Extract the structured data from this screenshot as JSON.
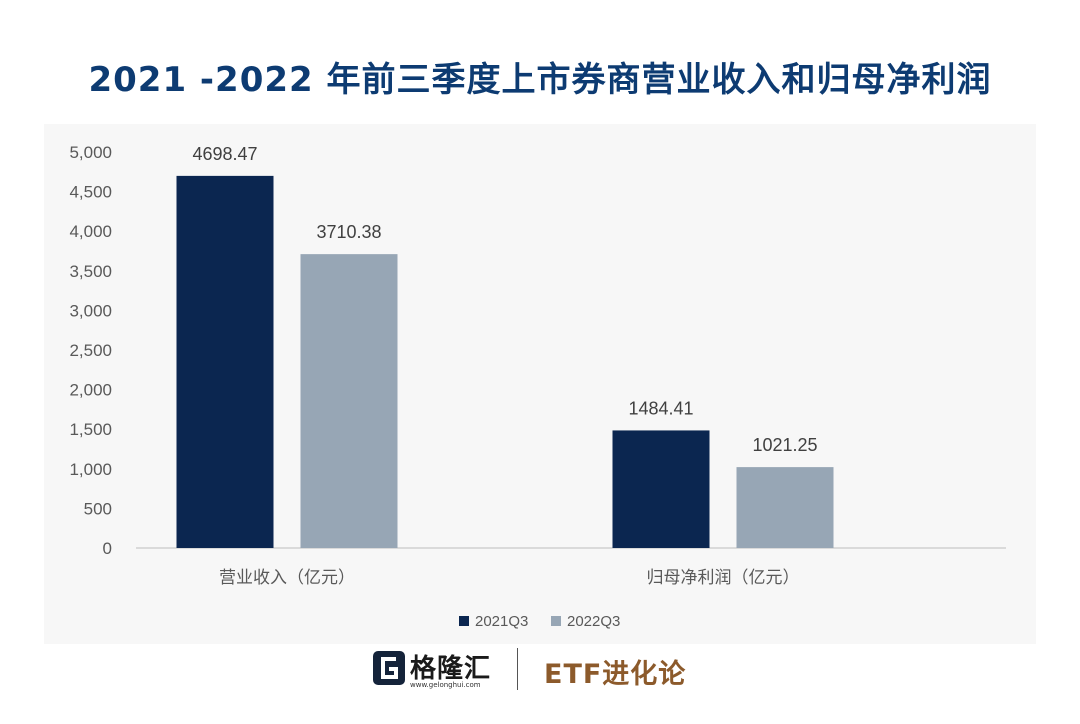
{
  "title": "2021 -2022 年前三季度上市券商营业收入和归母净利润",
  "chart_data": {
    "type": "bar",
    "categories": [
      "营业收入（亿元）",
      "归母净利润（亿元）"
    ],
    "series": [
      {
        "name": "2021Q3",
        "values": [
          4698.47,
          1484.41
        ],
        "labels": [
          "4698.47",
          "1484.41"
        ],
        "color": "#0b2650"
      },
      {
        "name": "2022Q3",
        "values": [
          3710.38,
          1021.25
        ],
        "labels": [
          "3710.38",
          "1021.25"
        ],
        "color": "#97a6b5"
      }
    ],
    "yticks": [
      "0",
      "500",
      "1,000",
      "1,500",
      "2,000",
      "2,500",
      "3,000",
      "3,500",
      "4,000",
      "4,500",
      "5,000"
    ],
    "ylim": [
      0,
      5000
    ],
    "grid": false,
    "legend_position": "bottom"
  },
  "footer": {
    "logo_text": "格隆汇",
    "logo_url": "www.gelonghui.com",
    "brand": "ETF进化论"
  }
}
